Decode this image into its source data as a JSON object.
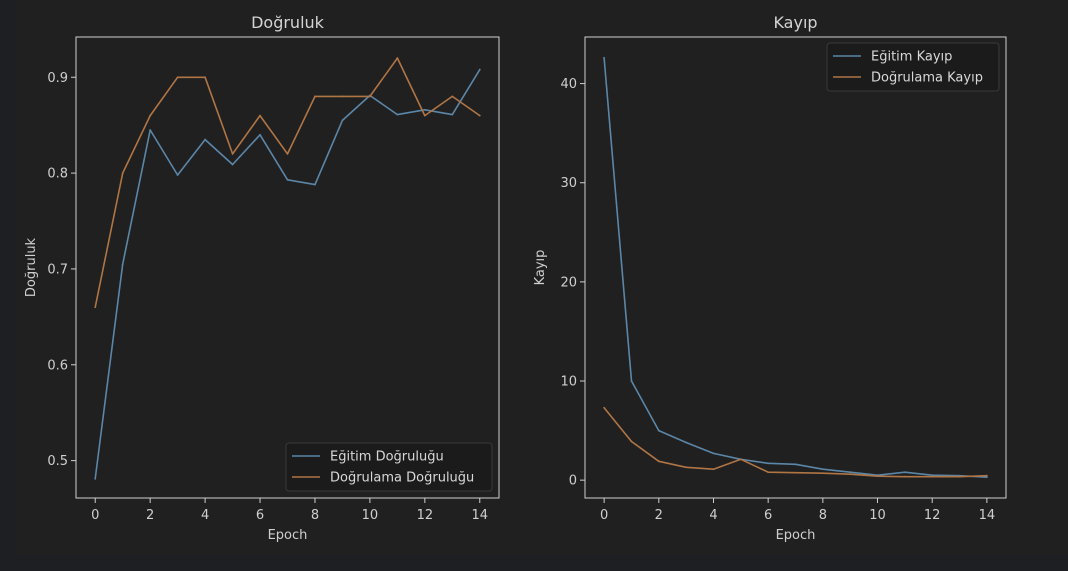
{
  "colors": {
    "figure_bg": "#202020",
    "page_bg": "#1e1f22",
    "axes_bg": "#202020",
    "spine": "#d0d0d0",
    "text": "#cfcfcf",
    "train": "#5b86a8",
    "val": "#b07545",
    "legend_bg": "#1b1b1b",
    "legend_border": "#3a3a3a"
  },
  "chart_data": [
    {
      "type": "line",
      "title": "Doğruluk",
      "xlabel": "Epoch",
      "ylabel": "Doğruluk",
      "xlim": [
        -0.7,
        14.7
      ],
      "ylim": [
        0.461,
        0.942
      ],
      "xticks": [
        0,
        2,
        4,
        6,
        8,
        10,
        12,
        14
      ],
      "yticks": [
        0.5,
        0.6,
        0.7,
        0.8,
        0.9
      ],
      "ytick_labels": [
        "0.5",
        "0.6",
        "0.7",
        "0.8",
        "0.9"
      ],
      "legend_position": "lower-right",
      "x": [
        0,
        1,
        2,
        3,
        4,
        5,
        6,
        7,
        8,
        9,
        10,
        11,
        12,
        13,
        14
      ],
      "series": [
        {
          "name": "Eğitim Doğruluğu",
          "color": "#5b86a8",
          "values": [
            0.481,
            0.705,
            0.845,
            0.798,
            0.835,
            0.809,
            0.84,
            0.793,
            0.788,
            0.855,
            0.881,
            0.861,
            0.866,
            0.861,
            0.908
          ]
        },
        {
          "name": "Doğrulama Doğruluğu",
          "color": "#b07545",
          "values": [
            0.66,
            0.8,
            0.86,
            0.9,
            0.9,
            0.82,
            0.86,
            0.82,
            0.88,
            0.88,
            0.88,
            0.92,
            0.86,
            0.88,
            0.86
          ]
        }
      ]
    },
    {
      "type": "line",
      "title": "Kayıp",
      "xlabel": "Epoch",
      "ylabel": "Kayıp",
      "xlim": [
        -0.7,
        14.7
      ],
      "ylim": [
        -1.8,
        44.7
      ],
      "xticks": [
        0,
        2,
        4,
        6,
        8,
        10,
        12,
        14
      ],
      "yticks": [
        0,
        10,
        20,
        30,
        40
      ],
      "ytick_labels": [
        "0",
        "10",
        "20",
        "30",
        "40"
      ],
      "legend_position": "upper-right",
      "x": [
        0,
        1,
        2,
        3,
        4,
        5,
        6,
        7,
        8,
        9,
        10,
        11,
        12,
        13,
        14
      ],
      "series": [
        {
          "name": "Eğitim Kayıp",
          "color": "#5b86a8",
          "values": [
            42.6,
            10.0,
            5.0,
            3.8,
            2.7,
            2.1,
            1.7,
            1.6,
            1.1,
            0.8,
            0.5,
            0.8,
            0.5,
            0.45,
            0.3
          ]
        },
        {
          "name": "Doğrulama Kayıp",
          "color": "#b07545",
          "values": [
            7.3,
            3.9,
            1.9,
            1.3,
            1.1,
            2.1,
            0.8,
            0.75,
            0.7,
            0.6,
            0.4,
            0.35,
            0.35,
            0.35,
            0.45
          ]
        }
      ]
    }
  ]
}
